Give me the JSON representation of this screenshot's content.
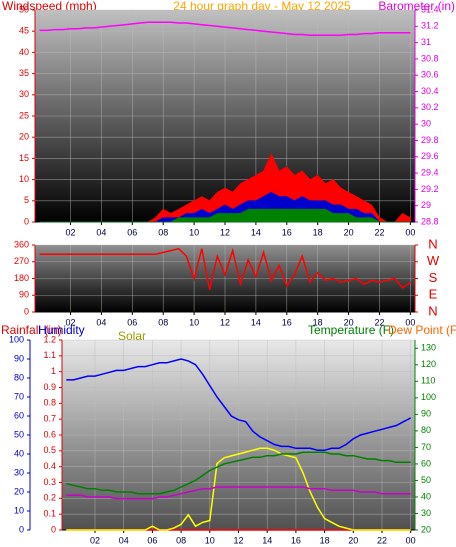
{
  "chart_data": [
    {
      "type": "line",
      "title": "24 hour graph day - May 12 2025",
      "ylabel": "Windspeed (mph)",
      "y2label": "Barometer (in)",
      "x": [
        0,
        0.5,
        1,
        1.5,
        2,
        2.5,
        3,
        3.5,
        4,
        4.5,
        5,
        5.5,
        6,
        6.5,
        7,
        7.5,
        8,
        8.5,
        9,
        9.5,
        10,
        10.5,
        11,
        11.5,
        12,
        12.5,
        13,
        13.5,
        14,
        14.5,
        15,
        15.5,
        16,
        16.5,
        17,
        17.5,
        18,
        18.5,
        19,
        19.5,
        20,
        20.5,
        21,
        21.5,
        22,
        22.5,
        23,
        23.5,
        24
      ],
      "xlim": [
        -0.3,
        24.3
      ],
      "xticks": [
        {
          "value": 2,
          "label": "02"
        },
        {
          "value": 4,
          "label": "04"
        },
        {
          "value": 6,
          "label": "06"
        },
        {
          "value": 8,
          "label": "08"
        },
        10,
        12,
        14,
        16,
        18,
        20,
        22,
        {
          "value": 24,
          "label": "00"
        }
      ],
      "ylim": [
        0,
        50
      ],
      "yticks": [
        0,
        5,
        10,
        15,
        20,
        25,
        30,
        35,
        40,
        45,
        50
      ],
      "y2lim": [
        28.8,
        31.4
      ],
      "y2ticks": [
        28.8,
        29,
        29.2,
        29.4,
        29.6,
        29.8,
        30,
        30.2,
        30.4,
        30.6,
        30.8,
        31,
        31.2,
        31.4
      ],
      "grid": true,
      "series": [
        {
          "color": "#ff0000",
          "style": "area",
          "values": [
            0,
            0,
            0,
            0,
            0,
            0,
            0,
            0,
            0,
            0,
            0,
            0,
            0,
            0,
            0,
            1,
            3,
            2,
            3,
            4,
            5,
            6,
            5,
            7,
            8,
            7,
            9,
            10,
            11,
            12,
            16,
            12,
            13,
            11,
            12,
            10,
            11,
            9,
            10,
            8,
            7,
            6,
            5,
            4,
            1,
            0,
            0,
            2,
            1
          ]
        },
        {
          "color": "#0000cc",
          "style": "area",
          "values": [
            0,
            0,
            0,
            0,
            0,
            0,
            0,
            0,
            0,
            0,
            0,
            0,
            0,
            0,
            0,
            0,
            1,
            1,
            1,
            2,
            2,
            3,
            2,
            3,
            4,
            3,
            4,
            5,
            5,
            6,
            7,
            6,
            6,
            5,
            6,
            5,
            5,
            5,
            4,
            4,
            3,
            3,
            2,
            2,
            0,
            0,
            0,
            0,
            0
          ]
        },
        {
          "color": "#008000",
          "style": "area",
          "values": [
            0,
            0,
            0,
            0,
            0,
            0,
            0,
            0,
            0,
            0,
            0,
            0,
            0,
            0,
            0,
            0,
            0,
            0,
            1,
            1,
            1,
            1,
            1,
            2,
            2,
            2,
            2,
            3,
            3,
            3,
            3,
            3,
            3,
            3,
            3,
            3,
            3,
            3,
            2,
            2,
            2,
            1,
            1,
            1,
            0,
            0,
            0,
            0,
            0
          ]
        },
        {
          "color": "#ff00ff",
          "axis": "y2",
          "values": [
            31.15,
            31.15,
            31.16,
            31.16,
            31.17,
            31.17,
            31.18,
            31.18,
            31.19,
            31.2,
            31.21,
            31.22,
            31.23,
            31.24,
            31.25,
            31.25,
            31.25,
            31.25,
            31.24,
            31.24,
            31.23,
            31.22,
            31.21,
            31.2,
            31.19,
            31.18,
            31.17,
            31.16,
            31.15,
            31.14,
            31.13,
            31.12,
            31.11,
            31.1,
            31.1,
            31.09,
            31.09,
            31.09,
            31.09,
            31.09,
            31.1,
            31.1,
            31.11,
            31.11,
            31.12,
            31.12,
            31.12,
            31.12,
            31.12
          ]
        }
      ]
    },
    {
      "type": "line",
      "x": [
        0,
        0.5,
        1,
        1.5,
        2,
        2.5,
        3,
        3.5,
        4,
        4.5,
        5,
        5.5,
        6,
        6.5,
        7,
        7.5,
        8,
        8.5,
        9,
        9.5,
        10,
        10.5,
        11,
        11.5,
        12,
        12.5,
        13,
        13.5,
        14,
        14.5,
        15,
        15.5,
        16,
        16.5,
        17,
        17.5,
        18,
        18.5,
        19,
        19.5,
        20,
        20.5,
        21,
        21.5,
        22,
        22.5,
        23,
        23.5,
        24
      ],
      "xlim": [
        -0.3,
        24.3
      ],
      "xticks": [
        {
          "value": 2,
          "label": "02"
        },
        {
          "value": 4,
          "label": "04"
        },
        {
          "value": 6,
          "label": "06"
        },
        {
          "value": 8,
          "label": "08"
        },
        10,
        12,
        14,
        16,
        18,
        20,
        22,
        {
          "value": 24,
          "label": "00"
        }
      ],
      "ylim": [
        0,
        360
      ],
      "yticks": [
        0,
        90,
        180,
        270,
        360
      ],
      "y2lim": [
        0,
        360
      ],
      "y2ticks": [
        {
          "value": 0,
          "label": "N"
        },
        {
          "value": 90,
          "label": "E"
        },
        {
          "value": 180,
          "label": "S"
        },
        {
          "value": 270,
          "label": "W"
        },
        {
          "value": 360,
          "label": "N"
        }
      ],
      "grid": true,
      "series": [
        {
          "color": "#ff0000",
          "values": [
            310,
            310,
            310,
            310,
            310,
            310,
            310,
            310,
            310,
            310,
            310,
            310,
            310,
            310,
            310,
            310,
            320,
            330,
            340,
            300,
            180,
            340,
            120,
            300,
            200,
            330,
            150,
            280,
            190,
            320,
            170,
            250,
            140,
            200,
            300,
            160,
            210,
            170,
            180,
            160,
            170,
            180,
            150,
            170,
            160,
            170,
            180,
            130,
            160
          ]
        }
      ]
    },
    {
      "type": "line",
      "x": [
        0,
        0.5,
        1,
        1.5,
        2,
        2.5,
        3,
        3.5,
        4,
        4.5,
        5,
        5.5,
        6,
        6.5,
        7,
        7.5,
        8,
        8.5,
        9,
        9.5,
        10,
        10.5,
        11,
        11.5,
        12,
        12.5,
        13,
        13.5,
        14,
        14.5,
        15,
        15.5,
        16,
        16.5,
        17,
        17.5,
        18,
        18.5,
        19,
        19.5,
        20,
        20.5,
        21,
        21.5,
        22,
        22.5,
        23,
        23.5,
        24
      ],
      "xlim": [
        -0.3,
        24.3
      ],
      "xticks": [
        {
          "value": 2,
          "label": "02"
        },
        {
          "value": 4,
          "label": "04"
        },
        {
          "value": 6,
          "label": "06"
        },
        {
          "value": 8,
          "label": "08"
        },
        10,
        12,
        14,
        16,
        18,
        20,
        22,
        {
          "value": 24,
          "label": "00"
        }
      ],
      "ylim": [
        0,
        1.2
      ],
      "yticks": [
        0,
        0.1,
        0.2,
        0.3,
        0.4,
        0.5,
        0.6,
        0.7,
        0.8,
        0.9,
        1,
        1.1,
        1.2
      ],
      "y3lim": [
        0,
        100
      ],
      "y3ticks": [
        0,
        10,
        20,
        30,
        40,
        50,
        60,
        70,
        80,
        90,
        100
      ],
      "y2lim": [
        20,
        135
      ],
      "y2ticks": [
        20,
        30,
        40,
        50,
        60,
        70,
        80,
        90,
        100,
        110,
        120,
        130
      ],
      "grid": true,
      "series": [
        {
          "name": "Rainfall (in)",
          "color": "#ff0000",
          "values": [
            0,
            0,
            0,
            0,
            0,
            0,
            0,
            0,
            0,
            0,
            0,
            0,
            0,
            0,
            0,
            0,
            0,
            0,
            0,
            0,
            0,
            0,
            0,
            0,
            0,
            0,
            0,
            0,
            0,
            0,
            0,
            0,
            0,
            0,
            0,
            0,
            0,
            0,
            0,
            0,
            0,
            0,
            0,
            0,
            0,
            0,
            0,
            0,
            0
          ]
        },
        {
          "name": "Humidity",
          "color": "#0000ff",
          "axis": "y3",
          "values": [
            79,
            79,
            80,
            81,
            81,
            82,
            83,
            84,
            84,
            85,
            86,
            86,
            87,
            88,
            88,
            89,
            90,
            89,
            87,
            82,
            76,
            70,
            65,
            60,
            58,
            57,
            52,
            49,
            47,
            45,
            44,
            44,
            43,
            43,
            43,
            42,
            42,
            43,
            43,
            45,
            48,
            50,
            51,
            52,
            53,
            54,
            55,
            57,
            59
          ]
        },
        {
          "name": "Solar",
          "color": "#ffff00",
          "axis": "y3",
          "values": [
            0,
            0,
            0,
            0,
            0,
            0,
            0,
            0,
            0,
            0,
            0,
            0,
            2,
            0,
            0,
            1,
            3,
            8,
            2,
            4,
            5,
            35,
            38,
            39,
            40,
            41,
            42,
            43,
            43,
            42,
            40,
            39,
            38,
            30,
            20,
            12,
            6,
            4,
            2,
            1,
            0,
            0,
            0,
            0,
            0,
            0,
            0,
            0,
            0
          ]
        },
        {
          "name": "Temperature (F)",
          "color": "#008000",
          "axis": "y2",
          "values": [
            48,
            47,
            46,
            45,
            45,
            44,
            44,
            43,
            43,
            43,
            42,
            42,
            42,
            42,
            43,
            44,
            46,
            48,
            50,
            53,
            56,
            58,
            60,
            61,
            62,
            63,
            64,
            64,
            65,
            65,
            66,
            66,
            66,
            67,
            67,
            67,
            67,
            66,
            66,
            65,
            65,
            64,
            63,
            63,
            62,
            62,
            61,
            61,
            61
          ]
        },
        {
          "name": "Dew Point (F)",
          "color": "#cc00cc",
          "axis": "y2",
          "values": [
            41,
            41,
            41,
            40,
            40,
            40,
            40,
            39,
            39,
            39,
            39,
            39,
            39,
            40,
            40,
            41,
            42,
            43,
            44,
            45,
            45,
            46,
            46,
            46,
            46,
            46,
            46,
            46,
            46,
            46,
            46,
            46,
            46,
            46,
            45,
            45,
            45,
            44,
            44,
            44,
            44,
            43,
            43,
            43,
            42,
            42,
            42,
            42,
            42
          ]
        }
      ]
    }
  ]
}
